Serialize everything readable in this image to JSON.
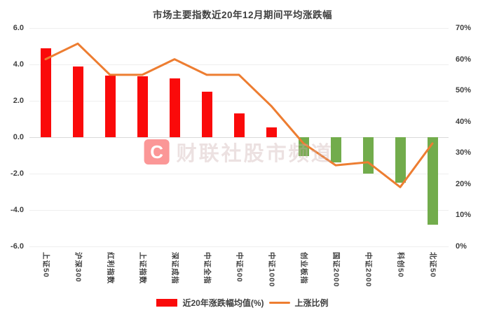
{
  "title": "市场主要指数近20年12月期间平均涨跌幅",
  "watermark": {
    "logo_letter": "C",
    "text": "财联社股市频道"
  },
  "legend": {
    "bar_label": "近20年涨跌幅均值(%)",
    "line_label": "上涨比例"
  },
  "colors": {
    "bar_positive": "#fa0a0a",
    "bar_negative": "#72ac4c",
    "line": "#ed7d31",
    "grid": "#efefef",
    "zero_line": "#d9d9d9",
    "text": "#3f3f3f"
  },
  "chart_data": {
    "type": "bar",
    "subtype": "bar-with-line-overlay",
    "title": "市场主要指数近20年12月期间平均涨跌幅",
    "categories": [
      "上证50",
      "沪深300",
      "红利指数",
      "上证指数",
      "深证成指",
      "中证全指",
      "中证500",
      "中证1000",
      "创业板指",
      "国证2000",
      "中证2000",
      "科创50",
      "北证50"
    ],
    "series": [
      {
        "name": "近20年涨跌幅均值(%)",
        "type": "bar",
        "axis": "left",
        "values": [
          4.9,
          3.9,
          3.4,
          3.35,
          3.25,
          2.5,
          1.3,
          0.55,
          -1.05,
          -1.4,
          -2.0,
          -2.5,
          -4.8
        ]
      },
      {
        "name": "上涨比例",
        "type": "line",
        "axis": "right",
        "values": [
          60,
          65,
          55,
          55,
          60,
          55,
          55,
          45,
          33,
          26,
          27,
          19,
          33
        ]
      }
    ],
    "left_axis": {
      "min": -6,
      "max": 6,
      "step": 2,
      "ticks": [
        "6.0",
        "4.0",
        "2.0",
        "0.0",
        "-2.0",
        "-4.0",
        "-6.0"
      ]
    },
    "right_axis": {
      "min": 0,
      "max": 70,
      "step": 10,
      "unit": "%",
      "ticks": [
        "70%",
        "60%",
        "50%",
        "40%",
        "30%",
        "20%",
        "10%",
        "0%"
      ]
    },
    "grid": true,
    "legend_position": "bottom"
  }
}
